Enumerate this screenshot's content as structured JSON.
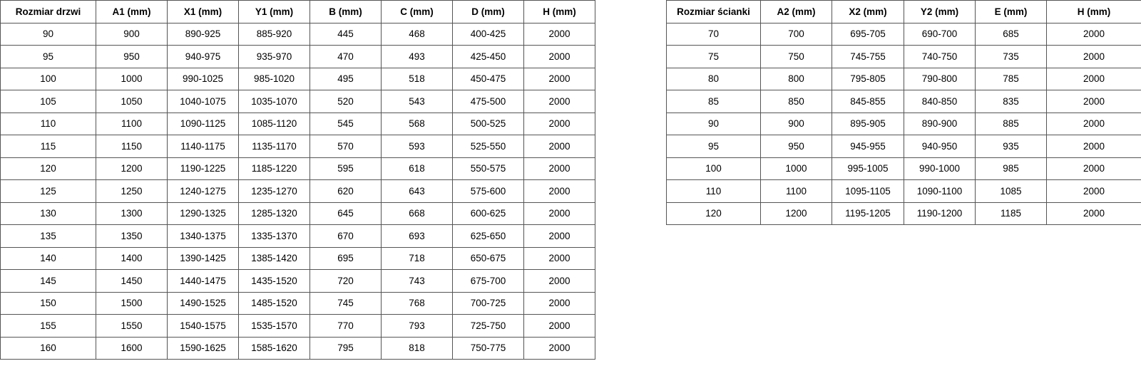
{
  "doors_table": {
    "headers": [
      "Rozmiar drzwi",
      "A1 (mm)",
      "X1 (mm)",
      "Y1 (mm)",
      "B (mm)",
      "C (mm)",
      "D (mm)",
      "H (mm)"
    ],
    "rows": [
      [
        "90",
        "900",
        "890-925",
        "885-920",
        "445",
        "468",
        "400-425",
        "2000"
      ],
      [
        "95",
        "950",
        "940-975",
        "935-970",
        "470",
        "493",
        "425-450",
        "2000"
      ],
      [
        "100",
        "1000",
        "990-1025",
        "985-1020",
        "495",
        "518",
        "450-475",
        "2000"
      ],
      [
        "105",
        "1050",
        "1040-1075",
        "1035-1070",
        "520",
        "543",
        "475-500",
        "2000"
      ],
      [
        "110",
        "1100",
        "1090-1125",
        "1085-1120",
        "545",
        "568",
        "500-525",
        "2000"
      ],
      [
        "115",
        "1150",
        "1140-1175",
        "1135-1170",
        "570",
        "593",
        "525-550",
        "2000"
      ],
      [
        "120",
        "1200",
        "1190-1225",
        "1185-1220",
        "595",
        "618",
        "550-575",
        "2000"
      ],
      [
        "125",
        "1250",
        "1240-1275",
        "1235-1270",
        "620",
        "643",
        "575-600",
        "2000"
      ],
      [
        "130",
        "1300",
        "1290-1325",
        "1285-1320",
        "645",
        "668",
        "600-625",
        "2000"
      ],
      [
        "135",
        "1350",
        "1340-1375",
        "1335-1370",
        "670",
        "693",
        "625-650",
        "2000"
      ],
      [
        "140",
        "1400",
        "1390-1425",
        "1385-1420",
        "695",
        "718",
        "650-675",
        "2000"
      ],
      [
        "145",
        "1450",
        "1440-1475",
        "1435-1520",
        "720",
        "743",
        "675-700",
        "2000"
      ],
      [
        "150",
        "1500",
        "1490-1525",
        "1485-1520",
        "745",
        "768",
        "700-725",
        "2000"
      ],
      [
        "155",
        "1550",
        "1540-1575",
        "1535-1570",
        "770",
        "793",
        "725-750",
        "2000"
      ],
      [
        "160",
        "1600",
        "1590-1625",
        "1585-1620",
        "795",
        "818",
        "750-775",
        "2000"
      ]
    ]
  },
  "walls_table": {
    "headers": [
      "Rozmiar ścianki",
      "A2 (mm)",
      "X2 (mm)",
      "Y2 (mm)",
      "E (mm)",
      "H (mm)"
    ],
    "rows": [
      [
        "70",
        "700",
        "695-705",
        "690-700",
        "685",
        "2000"
      ],
      [
        "75",
        "750",
        "745-755",
        "740-750",
        "735",
        "2000"
      ],
      [
        "80",
        "800",
        "795-805",
        "790-800",
        "785",
        "2000"
      ],
      [
        "85",
        "850",
        "845-855",
        "840-850",
        "835",
        "2000"
      ],
      [
        "90",
        "900",
        "895-905",
        "890-900",
        "885",
        "2000"
      ],
      [
        "95",
        "950",
        "945-955",
        "940-950",
        "935",
        "2000"
      ],
      [
        "100",
        "1000",
        "995-1005",
        "990-1000",
        "985",
        "2000"
      ],
      [
        "110",
        "1100",
        "1095-1105",
        "1090-1100",
        "1085",
        "2000"
      ],
      [
        "120",
        "1200",
        "1195-1205",
        "1190-1200",
        "1185",
        "2000"
      ]
    ]
  }
}
